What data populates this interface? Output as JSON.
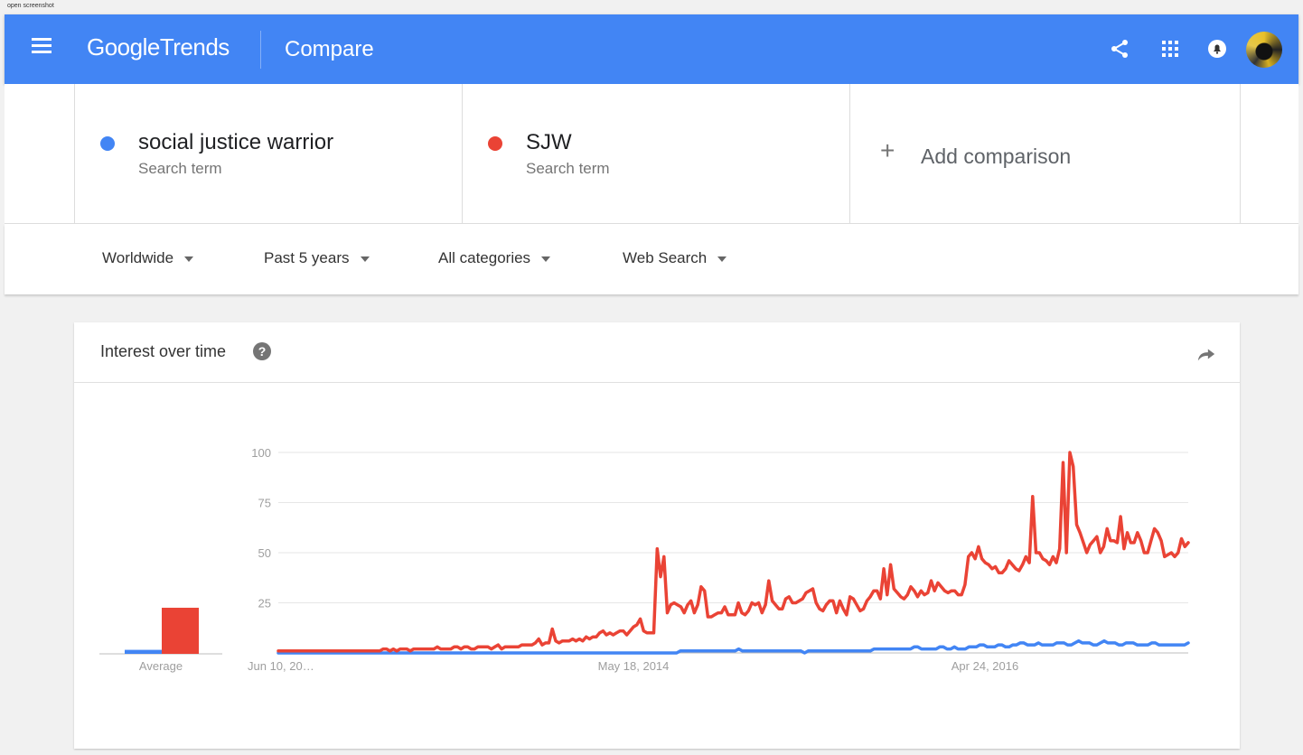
{
  "caption": "open screenshot",
  "header": {
    "logo_google": "Google",
    "logo_trends": "Trends",
    "page_label": "Compare",
    "icons": [
      "menu-icon",
      "share-icon",
      "apps-icon",
      "notifications-icon",
      "avatar"
    ]
  },
  "terms": [
    {
      "name": "social justice warrior",
      "sub": "Search term",
      "color": "#4285f4"
    },
    {
      "name": "SJW",
      "sub": "Search term",
      "color": "#ea4335"
    }
  ],
  "add_comparison": "Add comparison",
  "filters": {
    "region": "Worldwide",
    "time": "Past 5 years",
    "category": "All categories",
    "search_type": "Web Search"
  },
  "card": {
    "title": "Interest over time"
  },
  "chart_data": {
    "type": "line",
    "ylim": [
      0,
      100
    ],
    "y_ticks": [
      25,
      50,
      75,
      100
    ],
    "x_tick_labels": [
      "Jun 10, 20…",
      "May 18, 2014",
      "Apr 24, 2016"
    ],
    "average": {
      "label": "Average",
      "values": [
        2,
        23
      ]
    },
    "series": [
      {
        "color": "#4285f4",
        "values": [
          0,
          0,
          0,
          0,
          0,
          0,
          0,
          0,
          0,
          0,
          0,
          0,
          0,
          0,
          0,
          0,
          0,
          0,
          0,
          0,
          0,
          0,
          0,
          0,
          0,
          0,
          0,
          0,
          0,
          0,
          0,
          0,
          0,
          0,
          0,
          0,
          0,
          0,
          0,
          0,
          0,
          0,
          0,
          0,
          0,
          0,
          0,
          0,
          0,
          0,
          0,
          0,
          0,
          0,
          0,
          0,
          0,
          0,
          0,
          0,
          0,
          0,
          0,
          0,
          0,
          0,
          0,
          0,
          0,
          0,
          0,
          0,
          0,
          0,
          0,
          0,
          0,
          0,
          0,
          0,
          0,
          0,
          0,
          0,
          0,
          0,
          0,
          0,
          0,
          0,
          0,
          0,
          0,
          0,
          0,
          0,
          0,
          0,
          0,
          0,
          0,
          0,
          0,
          0,
          0,
          0,
          0,
          0,
          0,
          0,
          1,
          1,
          1,
          1,
          1,
          1,
          1,
          1,
          1,
          1,
          1,
          1,
          1,
          1,
          1,
          1,
          2,
          1,
          1,
          1,
          1,
          1,
          1,
          1,
          1,
          1,
          1,
          1,
          1,
          1,
          1,
          1,
          1,
          1,
          0,
          1,
          1,
          1,
          1,
          1,
          1,
          1,
          1,
          1,
          1,
          1,
          1,
          1,
          1,
          1,
          1,
          1,
          1,
          2,
          2,
          2,
          2,
          2,
          2,
          2,
          2,
          2,
          2,
          2,
          3,
          3,
          2,
          2,
          2,
          2,
          2,
          3,
          3,
          2,
          2,
          3,
          2,
          2,
          2,
          3,
          3,
          3,
          4,
          4,
          3,
          3,
          3,
          4,
          4,
          3,
          3,
          4,
          4,
          5,
          5,
          4,
          4,
          4,
          5,
          4,
          4,
          4,
          4,
          5,
          5,
          5,
          4,
          4,
          5,
          6,
          5,
          5,
          5,
          4,
          4,
          5,
          6,
          5,
          5,
          5,
          4,
          4,
          5,
          5,
          5,
          4,
          4,
          4,
          4,
          5,
          5,
          4,
          4,
          4,
          4,
          4,
          4,
          4,
          4,
          5
        ]
      },
      {
        "color": "#ea4335",
        "values": [
          1,
          1,
          1,
          1,
          1,
          1,
          1,
          1,
          1,
          1,
          1,
          1,
          1,
          1,
          1,
          1,
          1,
          1,
          1,
          1,
          1,
          1,
          1,
          1,
          1,
          1,
          1,
          1,
          1,
          1,
          1,
          2,
          2,
          1,
          2,
          1,
          2,
          2,
          2,
          1,
          2,
          2,
          2,
          2,
          2,
          2,
          2,
          3,
          2,
          2,
          2,
          2,
          3,
          3,
          2,
          3,
          3,
          2,
          2,
          3,
          3,
          3,
          3,
          2,
          3,
          4,
          2,
          3,
          3,
          3,
          3,
          3,
          4,
          4,
          4,
          4,
          5,
          7,
          4,
          5,
          5,
          12,
          6,
          5,
          6,
          6,
          6,
          7,
          6,
          7,
          6,
          8,
          7,
          8,
          8,
          10,
          11,
          9,
          10,
          9,
          10,
          11,
          11,
          9,
          11,
          13,
          14,
          17,
          11,
          10,
          10,
          10,
          52,
          38,
          48,
          20,
          24,
          25,
          24,
          23,
          20,
          24,
          26,
          20,
          24,
          33,
          31,
          18,
          18,
          19,
          20,
          20,
          23,
          19,
          19,
          19,
          25,
          20,
          19,
          21,
          25,
          24,
          25,
          20,
          24,
          36,
          26,
          24,
          22,
          22,
          27,
          28,
          25,
          25,
          26,
          27,
          30,
          31,
          32,
          25,
          22,
          21,
          24,
          26,
          26,
          20,
          26,
          22,
          19,
          28,
          27,
          24,
          21,
          22,
          26,
          28,
          31,
          31,
          27,
          42,
          29,
          44,
          32,
          30,
          28,
          27,
          29,
          33,
          31,
          28,
          31,
          29,
          30,
          36,
          31,
          35,
          33,
          31,
          30,
          31,
          31,
          29,
          29,
          34,
          48,
          50,
          47,
          53,
          47,
          45,
          44,
          42,
          43,
          40,
          40,
          42,
          46,
          44,
          42,
          41,
          44,
          48,
          45,
          78,
          50,
          50,
          47,
          46,
          44,
          48,
          45,
          52,
          95,
          50,
          100,
          93,
          64,
          60,
          55,
          50,
          54,
          56,
          58,
          50,
          53,
          62,
          56,
          56,
          55,
          68,
          52,
          60,
          55,
          55,
          60,
          56,
          50,
          50,
          56,
          62,
          60,
          56,
          48,
          49,
          50,
          48,
          50,
          57,
          53,
          55
        ]
      }
    ]
  }
}
